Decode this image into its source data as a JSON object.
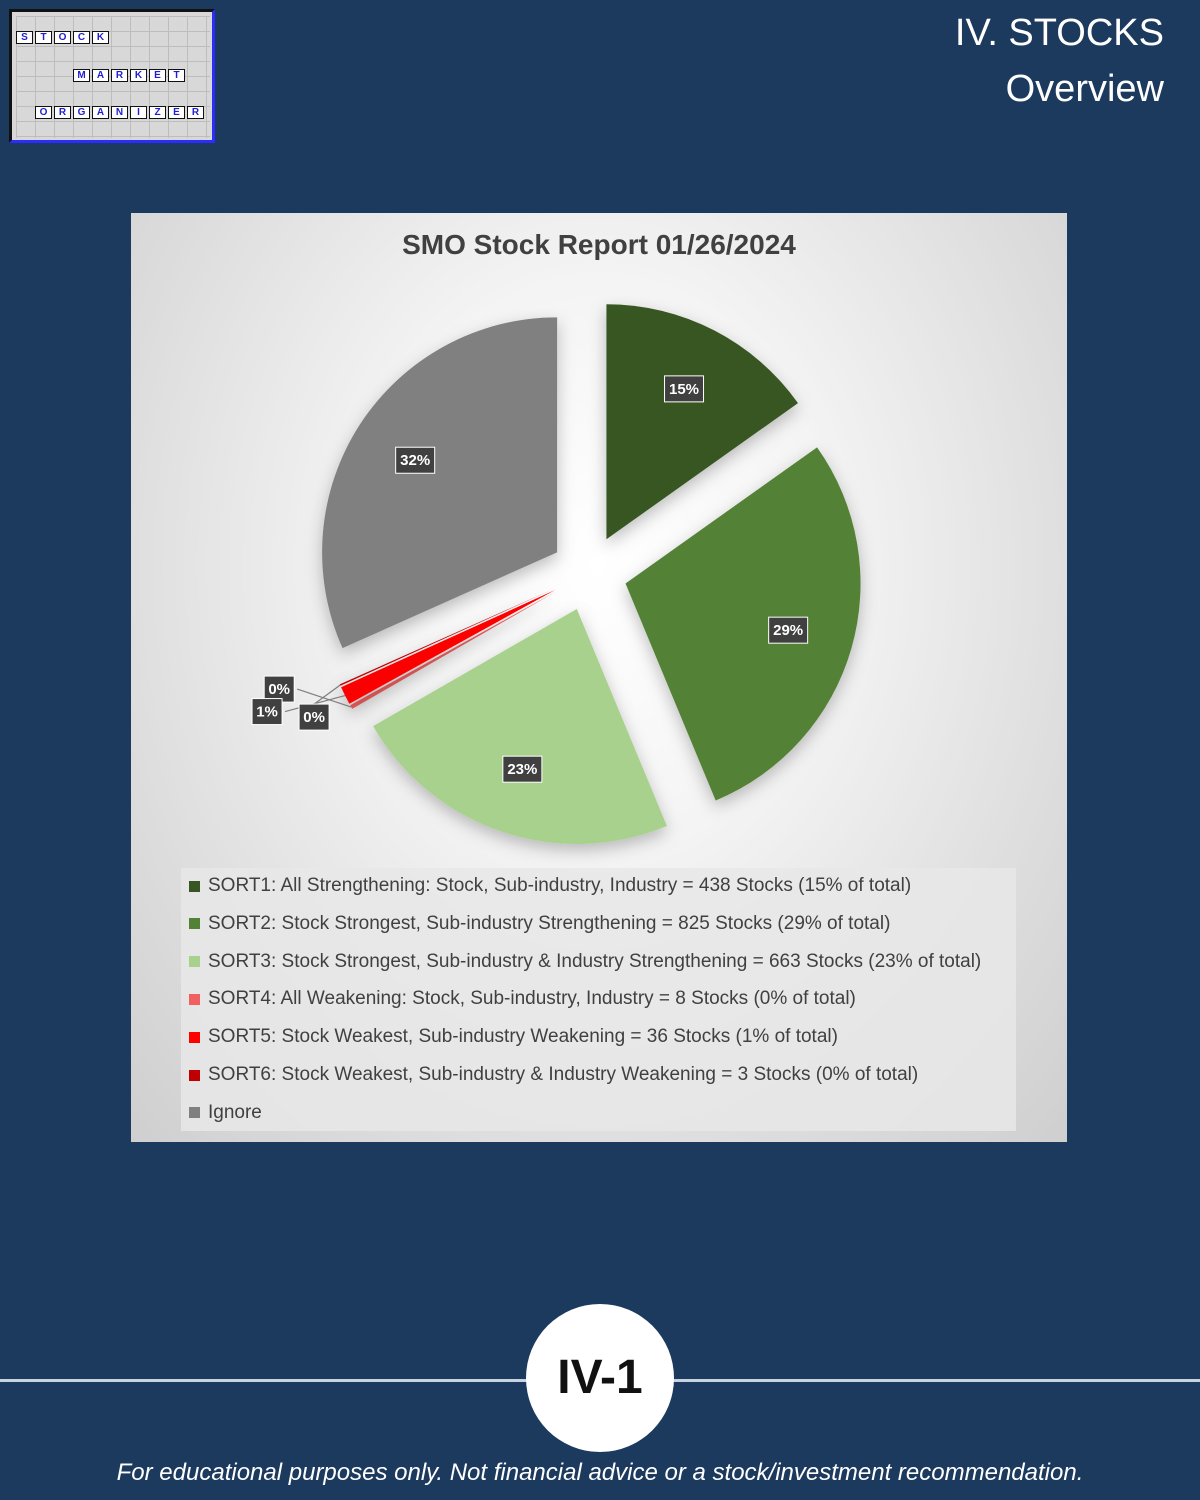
{
  "logo": {
    "row1": [
      "S",
      "T",
      "O",
      "C",
      "K"
    ],
    "row2": [
      "M",
      "A",
      "R",
      "K",
      "E",
      "T"
    ],
    "row3": [
      "O",
      "R",
      "G",
      "A",
      "N",
      "I",
      "Z",
      "E",
      "R"
    ]
  },
  "header": {
    "title": "IV. STOCKS",
    "subtitle": "Overview"
  },
  "chart_data": {
    "type": "pie",
    "title": "SMO Stock Report 01/26/2024",
    "exploded": true,
    "slices": [
      {
        "label": "SORT1: All Strengthening: Stock, Sub-industry, Industry = 438 Stocks (15% of total)",
        "value": 438,
        "percent_label": "15%",
        "color": "#375623"
      },
      {
        "label": "SORT2: Stock Strongest, Sub-industry Strengthening = 825 Stocks (29% of total)",
        "value": 825,
        "percent_label": "29%",
        "color": "#538135"
      },
      {
        "label": "SORT3: Stock Strongest, Sub-industry & Industry Strengthening = 663 Stocks (23% of total)",
        "value": 663,
        "percent_label": "23%",
        "color": "#a9d18e"
      },
      {
        "label": "SORT4: All Weakening: Stock, Sub-industry, Industry = 8 Stocks (0% of total)",
        "value": 8,
        "percent_label": "0%",
        "color": "#f06060"
      },
      {
        "label": "SORT5: Stock Weakest, Sub-industry Weakening = 36 Stocks (1% of total)",
        "value": 36,
        "percent_label": "1%",
        "color": "#ff0000"
      },
      {
        "label": "SORT6: Stock Weakest, Sub-industry & Industry Weakening = 3 Stocks (0% of total)",
        "value": 3,
        "percent_label": "0%",
        "color": "#c00000"
      },
      {
        "label": "Ignore",
        "value": 915,
        "percent_label": "32%",
        "color": "#808080"
      }
    ],
    "legend_position": "bottom"
  },
  "footer": {
    "page_number": "IV-1",
    "disclaimer": "For educational purposes only. Not financial advice or a stock/investment recommendation."
  }
}
